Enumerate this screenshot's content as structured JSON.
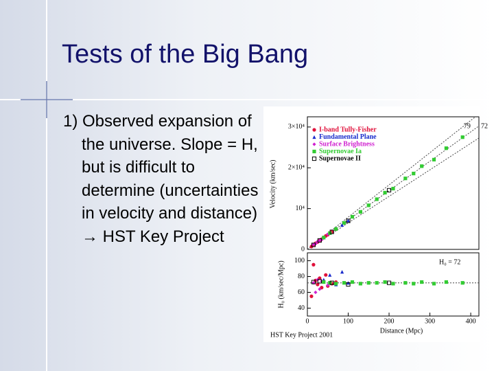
{
  "slide": {
    "title": "Tests of the Big Bang",
    "body": "1) Observed expansion of the universe. Slope = H, but is difficult to determine (uncertainties in velocity and distance) → HST Key Project"
  },
  "figure": {
    "type": "scatter",
    "xlabel": "Distance (Mpc)",
    "ylabel_top": "Velocity (km/sec)",
    "ylabel_bottom": "H₀ (km/sec/Mpc)",
    "credit": "HST Key Project 2001",
    "xlim": [
      0,
      420
    ],
    "xticks": [
      0,
      100,
      200,
      300,
      400
    ],
    "ylim": [
      0,
      32500
    ],
    "yticks": [
      0,
      {
        "value": 10000,
        "label": "10⁴"
      },
      {
        "value": 20000,
        "label": "2×10⁴"
      },
      {
        "value": 30000,
        "label": "3×10⁴"
      }
    ],
    "y2lim": [
      30,
      110
    ],
    "y2ticks": [
      40,
      60,
      80,
      100
    ],
    "fit_lines": [
      {
        "slope": 79,
        "label": "79"
      },
      {
        "slope": 72,
        "label": "72"
      },
      {
        "slope": 65
      }
    ],
    "h0_line": {
      "value": 72,
      "label": "H₀ = 72"
    },
    "series": [
      {
        "name": "I-band Tully-Fisher",
        "color": "#e0103a",
        "marker": "circle",
        "x": [
          10,
          15,
          20,
          25,
          30,
          35,
          40,
          45,
          50,
          60,
          70
        ],
        "velocity": [
          700,
          1100,
          1500,
          1800,
          2200,
          2500,
          2900,
          3300,
          3600,
          4300,
          5000
        ],
        "h0": [
          55,
          95,
          75,
          70,
          78,
          66,
          74,
          82,
          68,
          71,
          73
        ]
      },
      {
        "name": "Fundamental Plane",
        "color": "#1a2ccc",
        "marker": "triangle",
        "x": [
          40,
          55,
          70,
          85,
          100
        ],
        "velocity": [
          2900,
          4000,
          5100,
          6000,
          7100
        ],
        "h0": [
          76,
          82,
          70,
          86,
          72
        ]
      },
      {
        "name": "Surface Brightness",
        "color": "#d020d0",
        "marker": "diamond",
        "x": [
          15,
          20,
          25,
          30,
          35,
          50
        ],
        "velocity": [
          1200,
          1400,
          1900,
          2200,
          2400,
          3700
        ],
        "h0": [
          72,
          60,
          76,
          64,
          74,
          69
        ]
      },
      {
        "name": "Supernovae Ia",
        "color": "#33cc33",
        "marker": "square",
        "x": [
          40,
          55,
          70,
          90,
          110,
          130,
          150,
          170,
          190,
          210,
          240,
          260,
          280,
          310,
          340,
          380
        ],
        "velocity": [
          2900,
          4000,
          5000,
          6500,
          8000,
          9200,
          10800,
          12300,
          13900,
          14900,
          17400,
          18600,
          20400,
          22000,
          24800,
          27500
        ],
        "h0": [
          73,
          72,
          71,
          72,
          73,
          71,
          72,
          72,
          73,
          71,
          72,
          71,
          73,
          71,
          73,
          72
        ]
      },
      {
        "name": "Supernovae II",
        "color": "#000000",
        "marker": "open-square",
        "x": [
          15,
          30,
          60,
          100,
          200
        ],
        "velocity": [
          1100,
          2200,
          4300,
          7000,
          14500
        ],
        "h0": [
          73,
          74,
          72,
          70,
          72
        ]
      }
    ]
  }
}
